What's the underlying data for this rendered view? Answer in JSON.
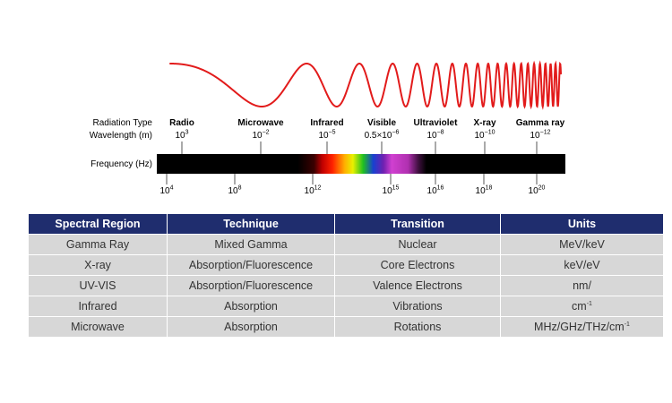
{
  "spectrum": {
    "radiation_type_label": "Radiation Type",
    "wavelength_label": "Wavelength (m)",
    "frequency_label": "Frequency (Hz)",
    "types": [
      {
        "name": "Radio",
        "wl_base": "10",
        "wl_exp": "3"
      },
      {
        "name": "Microwave",
        "wl_base": "10",
        "wl_exp": "−2"
      },
      {
        "name": "Infrared",
        "wl_base": "10",
        "wl_exp": "−5"
      },
      {
        "name": "Visible",
        "wl_base": "0.5×10",
        "wl_exp": "−6"
      },
      {
        "name": "Ultraviolet",
        "wl_base": "10",
        "wl_exp": "−8"
      },
      {
        "name": "X-ray",
        "wl_base": "10",
        "wl_exp": "−10"
      },
      {
        "name": "Gamma ray",
        "wl_base": "10",
        "wl_exp": "−12"
      }
    ],
    "frequencies": [
      {
        "base": "10",
        "exp": "4"
      },
      {
        "base": "10",
        "exp": "8"
      },
      {
        "base": "10",
        "exp": "12"
      },
      {
        "base": "10",
        "exp": "15"
      },
      {
        "base": "10",
        "exp": "16"
      },
      {
        "base": "10",
        "exp": "18"
      },
      {
        "base": "10",
        "exp": "20"
      }
    ],
    "wave_color": "#e21b1b"
  },
  "table": {
    "headers": [
      "Spectral Region",
      "Technique",
      "Transition",
      "Units"
    ],
    "rows": [
      [
        "Gamma Ray",
        "Mixed Gamma",
        "Nuclear",
        "MeV/keV"
      ],
      [
        "X-ray",
        "Absorption/Fluorescence",
        "Core Electrons",
        "keV/eV"
      ],
      [
        "UV-VIS",
        "Absorption/Fluorescence",
        "Valence Electrons",
        "nm/"
      ],
      [
        "Infrared",
        "Absorption",
        "Vibrations",
        "cm"
      ],
      [
        "Microwave",
        "Absorption",
        "Rotations",
        "MHz/GHz/THz/cm"
      ]
    ],
    "unit_superscripts": {
      "infrared": "-1",
      "microwave": "-1"
    },
    "header_color": "#1f2d6e",
    "cell_color": "#d7d7d7"
  }
}
